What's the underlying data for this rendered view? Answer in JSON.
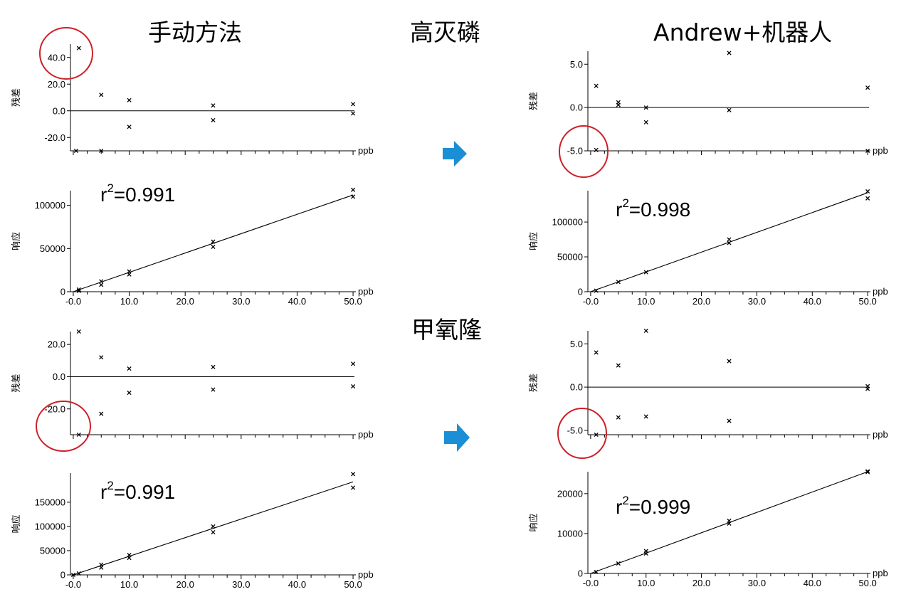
{
  "headings": {
    "manual": "手动方法",
    "compound1": "高灭磷",
    "robot": "Andrew+机器人",
    "compound2": "甲氧隆"
  },
  "axis_labels": {
    "residual": "残差",
    "response": "响应",
    "unit": "ppb"
  },
  "colors": {
    "arrow": "#1a8fd6",
    "highlight_circle": "#cc2027",
    "marks": "#000000"
  },
  "icons": {
    "arrow": "right-arrow-icon"
  },
  "chart_data": [
    {
      "id": "p1",
      "type": "scatter",
      "variant": "residual",
      "x_unit": "ppb",
      "ylabel": "残差",
      "xlim": [
        -0.5,
        50.5
      ],
      "ylim": [
        -30,
        50
      ],
      "yticks": [
        -20.0,
        0.0,
        20.0,
        40.0
      ],
      "ytick_labels": [
        "-20.0",
        "0.0",
        "20.0",
        "40.0"
      ],
      "points": [
        [
          0.5,
          -30
        ],
        [
          1,
          47
        ],
        [
          5,
          -30
        ],
        [
          5,
          12
        ],
        [
          10,
          8
        ],
        [
          10,
          -12
        ],
        [
          25,
          4
        ],
        [
          25,
          -7
        ],
        [
          50,
          5
        ],
        [
          50,
          -2
        ]
      ],
      "zero_line": true
    },
    {
      "id": "p2",
      "type": "scatter",
      "variant": "response",
      "x_unit": "ppb",
      "ylabel": "响应",
      "xlim": [
        -0.5,
        50.5
      ],
      "ylim": [
        0,
        117000
      ],
      "yticks": [
        0,
        50000,
        100000
      ],
      "ytick_labels": [
        "0",
        "50000",
        "100000"
      ],
      "xticks": [
        -0.0,
        10.0,
        20.0,
        30.0,
        40.0,
        50.0
      ],
      "xtick_labels": [
        "-0.0",
        "10.0",
        "20.0",
        "30.0",
        "40.0",
        "50.0"
      ],
      "points": [
        [
          1,
          1000
        ],
        [
          1,
          2500
        ],
        [
          5,
          8000
        ],
        [
          5,
          12000
        ],
        [
          10,
          20000
        ],
        [
          10,
          23500
        ],
        [
          25,
          52000
        ],
        [
          25,
          58000
        ],
        [
          50,
          110000
        ],
        [
          50,
          118000
        ]
      ],
      "fit_line": [
        [
          0,
          0
        ],
        [
          50,
          112000
        ]
      ],
      "r2_label": "r",
      "r2_sup": "2",
      "r2_value": "=0.991"
    },
    {
      "id": "p3",
      "type": "scatter",
      "variant": "residual",
      "x_unit": "ppb",
      "ylabel": "残差",
      "xlim": [
        -0.5,
        50.5
      ],
      "ylim": [
        -36,
        28
      ],
      "yticks": [
        -20.0,
        0.0,
        20.0
      ],
      "ytick_labels": [
        "-20.0",
        "0.0",
        "20.0"
      ],
      "points": [
        [
          1,
          28
        ],
        [
          1,
          -36
        ],
        [
          5,
          12
        ],
        [
          5,
          -23
        ],
        [
          10,
          5
        ],
        [
          10,
          -10
        ],
        [
          25,
          6
        ],
        [
          25,
          -8
        ],
        [
          50,
          8
        ],
        [
          50,
          -6
        ]
      ],
      "zero_line": true
    },
    {
      "id": "p4",
      "type": "scatter",
      "variant": "response",
      "x_unit": "ppb",
      "ylabel": "响应",
      "xlim": [
        -0.5,
        50.5
      ],
      "ylim": [
        0,
        210000
      ],
      "yticks": [
        0,
        50000,
        100000,
        150000
      ],
      "ytick_labels": [
        "0",
        "50000",
        "100000",
        "150000"
      ],
      "xticks": [
        -0.0,
        10.0,
        20.0,
        30.0,
        40.0,
        50.0
      ],
      "xtick_labels": [
        "-0.0",
        "10.0",
        "20.0",
        "30.0",
        "40.0",
        "50.0"
      ],
      "points": [
        [
          0,
          0
        ],
        [
          1,
          3000
        ],
        [
          5,
          15000
        ],
        [
          5,
          21000
        ],
        [
          10,
          35000
        ],
        [
          10,
          41000
        ],
        [
          25,
          88000
        ],
        [
          25,
          100000
        ],
        [
          50,
          180000
        ],
        [
          50,
          208000
        ]
      ],
      "fit_line": [
        [
          0,
          0
        ],
        [
          50,
          192000
        ]
      ],
      "r2_label": "r",
      "r2_sup": "2",
      "r2_value": "=0.991"
    },
    {
      "id": "p5",
      "type": "scatter",
      "variant": "residual",
      "x_unit": "ppb",
      "ylabel": "残差",
      "xlim": [
        -0.5,
        50.5
      ],
      "ylim": [
        -5,
        6.5
      ],
      "yticks": [
        -5.0,
        0.0,
        5.0
      ],
      "ytick_labels": [
        "-5.0",
        "0.0",
        "5.0"
      ],
      "points": [
        [
          1,
          -4.9
        ],
        [
          1,
          2.5
        ],
        [
          5,
          0.3
        ],
        [
          5,
          0.6
        ],
        [
          10,
          0
        ],
        [
          10,
          -1.7
        ],
        [
          25,
          6.3
        ],
        [
          25,
          -0.3
        ],
        [
          50,
          2.3
        ],
        [
          50,
          -5
        ]
      ],
      "zero_line": true
    },
    {
      "id": "p6",
      "type": "scatter",
      "variant": "response",
      "x_unit": "ppb",
      "ylabel": "响应",
      "xlim": [
        -0.5,
        50.5
      ],
      "ylim": [
        0,
        145000
      ],
      "yticks": [
        0,
        50000,
        100000
      ],
      "ytick_labels": [
        "0",
        "50000",
        "100000"
      ],
      "xticks": [
        -0.0,
        10.0,
        20.0,
        30.0,
        40.0,
        50.0
      ],
      "xtick_labels": [
        "-0.0",
        "10.0",
        "20.0",
        "30.0",
        "40.0",
        "50.0"
      ],
      "points": [
        [
          1,
          1500
        ],
        [
          5,
          14000
        ],
        [
          10,
          28000
        ],
        [
          25,
          70000
        ],
        [
          25,
          75000
        ],
        [
          50,
          134000
        ],
        [
          50,
          144000
        ]
      ],
      "fit_line": [
        [
          0,
          0
        ],
        [
          50,
          142000
        ]
      ],
      "r2_label": "r",
      "r2_sup": "2",
      "r2_value": "=0.998"
    },
    {
      "id": "p7",
      "type": "scatter",
      "variant": "residual",
      "x_unit": "ppb",
      "ylabel": "残差",
      "xlim": [
        -0.5,
        50.5
      ],
      "ylim": [
        -5.5,
        6.5
      ],
      "yticks": [
        -5.0,
        0.0,
        5.0
      ],
      "ytick_labels": [
        "-5.0",
        "0.0",
        "5.0"
      ],
      "points": [
        [
          1,
          4
        ],
        [
          1,
          -5.5
        ],
        [
          5,
          2.5
        ],
        [
          5,
          -3.5
        ],
        [
          10,
          6.5
        ],
        [
          10,
          -3.4
        ],
        [
          25,
          3
        ],
        [
          25,
          -3.9
        ],
        [
          50,
          0.1
        ],
        [
          50,
          -0.2
        ]
      ],
      "zero_line": true
    },
    {
      "id": "p8",
      "type": "scatter",
      "variant": "response",
      "x_unit": "ppb",
      "ylabel": "响应",
      "xlim": [
        -0.5,
        50.5
      ],
      "ylim": [
        0,
        25500
      ],
      "yticks": [
        0,
        10000,
        20000
      ],
      "ytick_labels": [
        "0",
        "10000",
        "20000"
      ],
      "xticks": [
        -0.0,
        10.0,
        20.0,
        30.0,
        40.0,
        50.0
      ],
      "xtick_labels": [
        "-0.0",
        "10.0",
        "20.0",
        "30.0",
        "40.0",
        "50.0"
      ],
      "points": [
        [
          1,
          400
        ],
        [
          5,
          2500
        ],
        [
          10,
          5000
        ],
        [
          10,
          5600
        ],
        [
          25,
          12500
        ],
        [
          25,
          13200
        ],
        [
          50,
          25400
        ],
        [
          50,
          25600
        ]
      ],
      "fit_line": [
        [
          0,
          0
        ],
        [
          50,
          25500
        ]
      ],
      "r2_label": "r",
      "r2_sup": "2",
      "r2_value": "=0.999"
    }
  ]
}
